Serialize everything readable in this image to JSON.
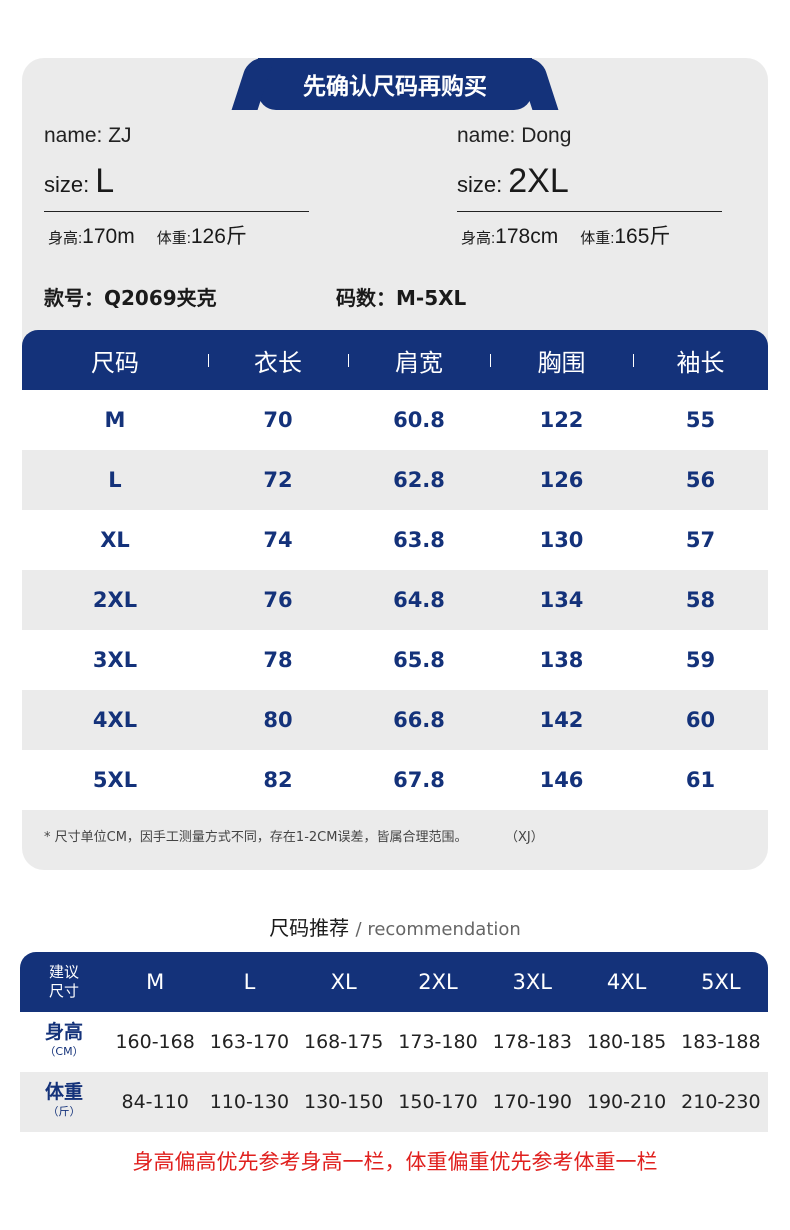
{
  "header": {
    "title": "先确认尺码再购买"
  },
  "models": [
    {
      "name": "name: ZJ",
      "size_label": "size:",
      "size": "L",
      "height_label": "身高:",
      "height": "170m",
      "weight_label": "体重:",
      "weight": "126斤"
    },
    {
      "name": "name: Dong",
      "size_label": "size:",
      "size": "2XL",
      "height_label": "身高:",
      "height": "178cm",
      "weight_label": "体重:",
      "weight": "165斤"
    }
  ],
  "product": {
    "style": "款号：Q2069夹克",
    "sizes": "码数：M-5XL"
  },
  "size_table": {
    "headers": [
      "尺码",
      "衣长",
      "肩宽",
      "胸围",
      "袖长"
    ],
    "rows": [
      [
        "M",
        "70",
        "60.8",
        "122",
        "55"
      ],
      [
        "L",
        "72",
        "62.8",
        "126",
        "56"
      ],
      [
        "XL",
        "74",
        "63.8",
        "130",
        "57"
      ],
      [
        "2XL",
        "76",
        "64.8",
        "134",
        "58"
      ],
      [
        "3XL",
        "78",
        "65.8",
        "138",
        "59"
      ],
      [
        "4XL",
        "80",
        "66.8",
        "142",
        "60"
      ],
      [
        "5XL",
        "82",
        "67.8",
        "146",
        "61"
      ]
    ],
    "note": "* 尺寸单位CM，因手工测量方式不同，存在1-2CM误差，皆属合理范围。",
    "note_tag": "（XJ）"
  },
  "recommendation": {
    "title": "尺码推荐",
    "subtitle": "/ recommendation",
    "corner": [
      "建议",
      "尺寸"
    ],
    "sizes": [
      "M",
      "L",
      "XL",
      "2XL",
      "3XL",
      "4XL",
      "5XL"
    ],
    "height_label": "身高",
    "height_unit": "（CM）",
    "heights": [
      "160-168",
      "163-170",
      "168-175",
      "173-180",
      "178-183",
      "180-185",
      "183-188"
    ],
    "weight_label": "体重",
    "weight_unit": "（斤）",
    "weights": [
      "84-110",
      "110-130",
      "130-150",
      "150-170",
      "170-190",
      "190-210",
      "210-230"
    ]
  },
  "footer": {
    "warning": "身高偏高优先参考身高一栏，体重偏重优先参考体重一栏"
  },
  "colors": {
    "primary": "#14327a",
    "card": "#ebebeb",
    "warning": "#e0201e"
  }
}
